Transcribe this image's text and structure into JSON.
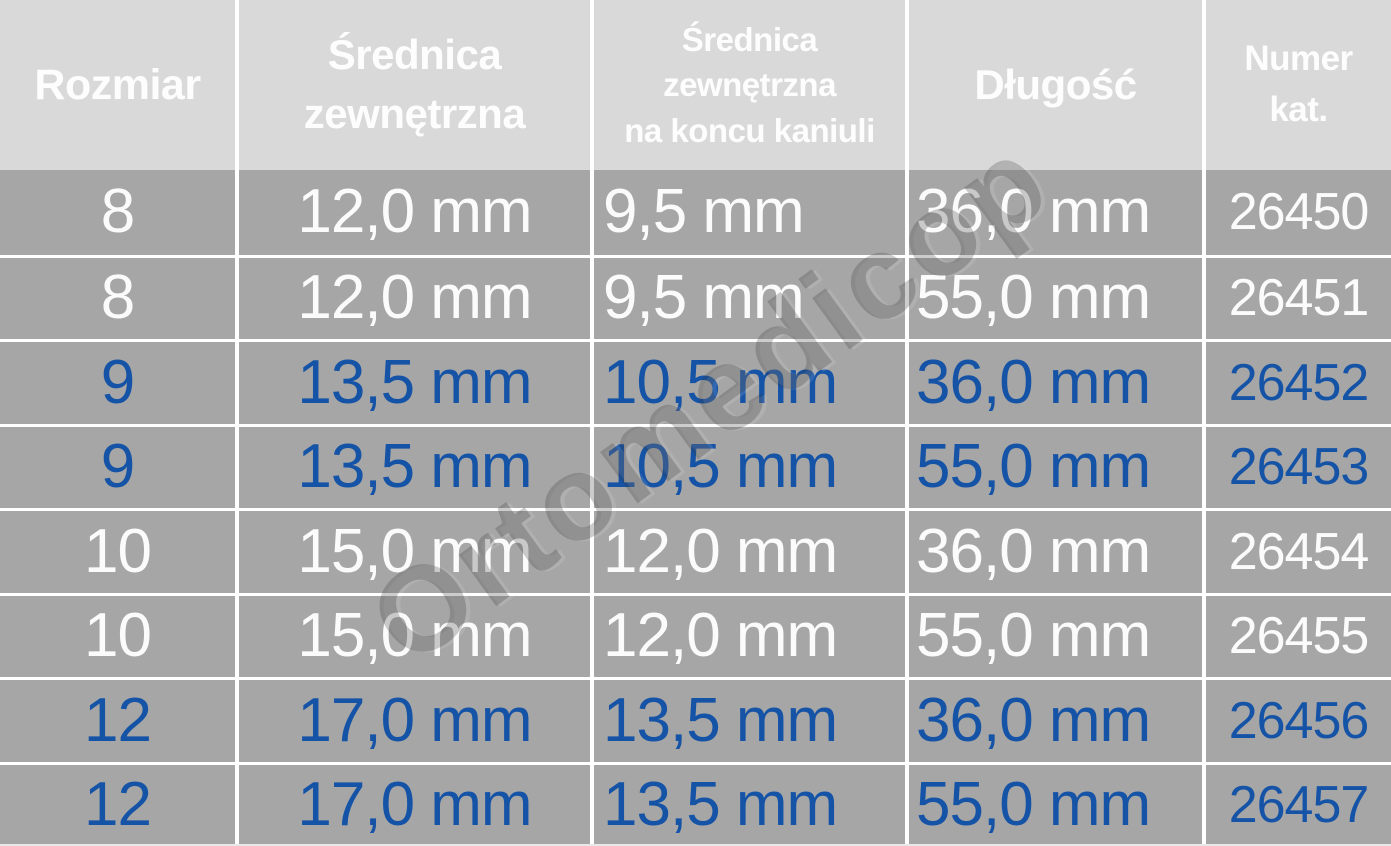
{
  "header": {
    "cells": [
      {
        "lines": [
          "Rozmiar"
        ]
      },
      {
        "lines": [
          "Średnica",
          "zewnętrzna"
        ]
      },
      {
        "lines": [
          "Średnica",
          "zewnętrzna",
          "na koncu kaniuli"
        ]
      },
      {
        "lines": [
          "Długość"
        ]
      },
      {
        "lines": [
          "Numer",
          "kat."
        ]
      }
    ]
  },
  "rows": [
    {
      "size": "8",
      "outer_diameter": "12,0 mm",
      "tip_diameter": "9,5 mm",
      "length": "36,0 mm",
      "cat_no": "26450",
      "text_color": "white"
    },
    {
      "size": "8",
      "outer_diameter": "12,0 mm",
      "tip_diameter": "9,5 mm",
      "length": "55,0 mm",
      "cat_no": "26451",
      "text_color": "white"
    },
    {
      "size": "9",
      "outer_diameter": "13,5 mm",
      "tip_diameter": "10,5 mm",
      "length": "36,0 mm",
      "cat_no": "26452",
      "text_color": "blue"
    },
    {
      "size": "9",
      "outer_diameter": "13,5 mm",
      "tip_diameter": "10,5 mm",
      "length": "55,0 mm",
      "cat_no": "26453",
      "text_color": "blue"
    },
    {
      "size": "10",
      "outer_diameter": "15,0 mm",
      "tip_diameter": "12,0 mm",
      "length": "36,0 mm",
      "cat_no": "26454",
      "text_color": "white"
    },
    {
      "size": "10",
      "outer_diameter": "15,0 mm",
      "tip_diameter": "12,0 mm",
      "length": "55,0 mm",
      "cat_no": "26455",
      "text_color": "white"
    },
    {
      "size": "12",
      "outer_diameter": "17,0 mm",
      "tip_diameter": "13,5 mm",
      "length": "36,0 mm",
      "cat_no": "26456",
      "text_color": "blue"
    },
    {
      "size": "12",
      "outer_diameter": "17,0 mm",
      "tip_diameter": "13,5 mm",
      "length": "55,0 mm",
      "cat_no": "26457",
      "text_color": "blue"
    }
  ],
  "watermark": {
    "text": "Ortomedicop"
  },
  "colors": {
    "header_bg": "#d9d9d9",
    "row_bg": "#a6a6a6",
    "grid_line": "#ffffff",
    "text_white": "#fbfbfb",
    "text_blue": "#1553a6",
    "watermark_gray": "#3a3a3a"
  },
  "chart_data": {
    "type": "table",
    "title": "",
    "columns": [
      "Rozmiar",
      "Średnica zewnętrzna",
      "Średnica zewnętrzna na koncu kaniuli",
      "Długość",
      "Numer kat."
    ],
    "rows": [
      [
        "8",
        "12,0 mm",
        "9,5 mm",
        "36,0 mm",
        "26450"
      ],
      [
        "8",
        "12,0 mm",
        "9,5 mm",
        "55,0 mm",
        "26451"
      ],
      [
        "9",
        "13,5 mm",
        "10,5 mm",
        "36,0 mm",
        "26452"
      ],
      [
        "9",
        "13,5 mm",
        "10,5 mm",
        "55,0 mm",
        "26453"
      ],
      [
        "10",
        "15,0 mm",
        "12,0 mm",
        "36,0 mm",
        "26454"
      ],
      [
        "10",
        "15,0 mm",
        "12,0 mm",
        "55,0 mm",
        "26455"
      ],
      [
        "12",
        "17,0 mm",
        "13,5 mm",
        "36,0 mm",
        "26456"
      ],
      [
        "12",
        "17,0 mm",
        "13,5 mm",
        "55,0 mm",
        "26457"
      ]
    ],
    "layout_hints": {
      "header_style": "light-gray background, white bold text",
      "body_style": "gray background, rows 1-2 white text, rows 3-4 blue, rows 5-6 white, rows 7-8 blue",
      "grid": "white separator lines",
      "watermark": "diagonal gray 'Ortomedicop' across center"
    }
  }
}
